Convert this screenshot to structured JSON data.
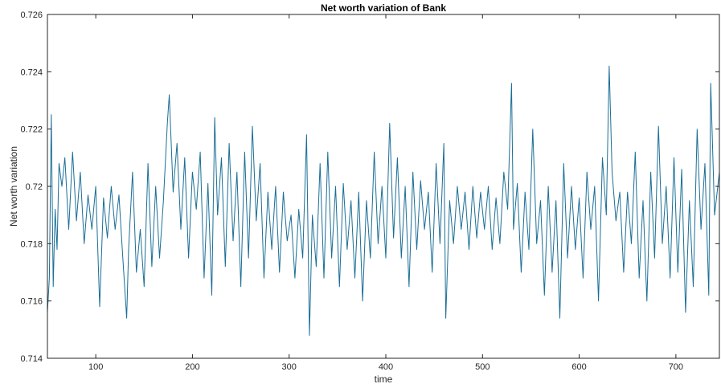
{
  "chart_data": {
    "type": "line",
    "title": "Net worth variation of Bank",
    "xlabel": "time",
    "ylabel": "Net worth variation",
    "xlim": [
      50,
      745
    ],
    "ylim": [
      0.714,
      0.726
    ],
    "xticks": [
      100,
      200,
      300,
      400,
      500,
      600,
      700
    ],
    "xtick_labels": [
      "100",
      "200",
      "300",
      "400",
      "500",
      "600",
      "700"
    ],
    "yticks": [
      0.714,
      0.716,
      0.718,
      0.72,
      0.722,
      0.724,
      0.726
    ],
    "ytick_labels": [
      "0.714",
      "0.716",
      "0.718",
      "0.72",
      "0.722",
      "0.724",
      "0.726"
    ],
    "grid": false,
    "line_color": "#1a6e96",
    "series": [
      {
        "x": [
          50,
          52,
          54,
          56,
          58,
          60,
          62,
          65,
          68,
          72,
          76,
          80,
          84,
          88,
          92,
          96,
          100,
          104,
          108,
          112,
          116,
          120,
          124,
          128,
          132,
          134,
          138,
          142,
          146,
          150,
          154,
          158,
          162,
          166,
          170,
          174,
          176,
          180,
          184,
          188,
          192,
          196,
          200,
          204,
          208,
          212,
          216,
          220,
          223,
          226,
          230,
          234,
          238,
          242,
          246,
          250,
          254,
          258,
          262,
          266,
          270,
          274,
          278,
          282,
          286,
          290,
          294,
          298,
          302,
          306,
          310,
          314,
          318,
          321,
          324,
          328,
          332,
          336,
          340,
          344,
          348,
          352,
          356,
          360,
          364,
          368,
          372,
          376,
          380,
          384,
          388,
          392,
          396,
          400,
          404,
          408,
          412,
          416,
          420,
          424,
          428,
          432,
          436,
          440,
          444,
          448,
          452,
          456,
          460,
          462,
          466,
          470,
          474,
          478,
          482,
          486,
          490,
          494,
          498,
          502,
          506,
          510,
          514,
          518,
          522,
          526,
          530,
          532,
          536,
          540,
          544,
          548,
          552,
          556,
          560,
          564,
          568,
          572,
          576,
          580,
          584,
          588,
          592,
          596,
          600,
          604,
          608,
          612,
          616,
          620,
          624,
          628,
          631,
          634,
          638,
          642,
          646,
          650,
          654,
          658,
          662,
          666,
          670,
          674,
          678,
          682,
          686,
          690,
          694,
          698,
          702,
          706,
          710,
          714,
          718,
          722,
          726,
          730,
          734,
          736,
          740,
          745
        ],
        "values": [
          0.7156,
          0.7168,
          0.7225,
          0.7165,
          0.7192,
          0.7178,
          0.7208,
          0.72,
          0.721,
          0.7185,
          0.7212,
          0.7188,
          0.7205,
          0.718,
          0.7197,
          0.7185,
          0.72,
          0.7158,
          0.7196,
          0.7182,
          0.72,
          0.7185,
          0.7197,
          0.7175,
          0.7154,
          0.7178,
          0.7205,
          0.717,
          0.7185,
          0.7165,
          0.7208,
          0.7172,
          0.72,
          0.7175,
          0.7195,
          0.7222,
          0.7232,
          0.7198,
          0.7215,
          0.7185,
          0.721,
          0.7175,
          0.7205,
          0.7192,
          0.7212,
          0.7168,
          0.7201,
          0.7162,
          0.7224,
          0.719,
          0.721,
          0.7172,
          0.7215,
          0.7181,
          0.7205,
          0.7165,
          0.7212,
          0.7175,
          0.7221,
          0.7188,
          0.7208,
          0.7168,
          0.7198,
          0.7178,
          0.72,
          0.717,
          0.7198,
          0.7181,
          0.719,
          0.7168,
          0.7192,
          0.7175,
          0.7218,
          0.7148,
          0.719,
          0.7172,
          0.7208,
          0.7168,
          0.7212,
          0.7175,
          0.72,
          0.7165,
          0.7201,
          0.7178,
          0.7195,
          0.7168,
          0.7198,
          0.716,
          0.7195,
          0.7175,
          0.7212,
          0.718,
          0.72,
          0.7175,
          0.7222,
          0.7182,
          0.721,
          0.7175,
          0.72,
          0.7165,
          0.7205,
          0.7178,
          0.7202,
          0.7185,
          0.7198,
          0.717,
          0.7208,
          0.718,
          0.7215,
          0.7154,
          0.7195,
          0.718,
          0.72,
          0.7185,
          0.7198,
          0.7178,
          0.72,
          0.7182,
          0.7198,
          0.7185,
          0.72,
          0.7178,
          0.7196,
          0.718,
          0.7205,
          0.7192,
          0.7236,
          0.7185,
          0.7201,
          0.717,
          0.7198,
          0.7178,
          0.722,
          0.718,
          0.7195,
          0.7162,
          0.72,
          0.717,
          0.7195,
          0.7154,
          0.7208,
          0.7175,
          0.72,
          0.7178,
          0.7196,
          0.7168,
          0.7205,
          0.7185,
          0.72,
          0.716,
          0.721,
          0.719,
          0.7242,
          0.7205,
          0.7188,
          0.7198,
          0.717,
          0.7198,
          0.718,
          0.7212,
          0.7168,
          0.7195,
          0.716,
          0.7205,
          0.7175,
          0.7221,
          0.718,
          0.72,
          0.7168,
          0.721,
          0.717,
          0.7206,
          0.7156,
          0.7195,
          0.7165,
          0.722,
          0.7185,
          0.7208,
          0.7162,
          0.7236,
          0.719,
          0.7205
        ]
      }
    ]
  }
}
